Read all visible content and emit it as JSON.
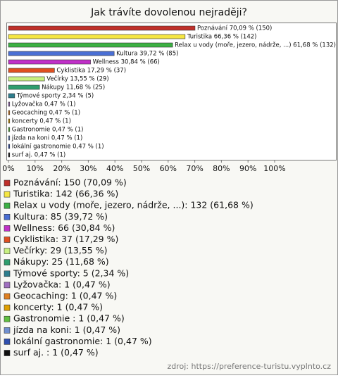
{
  "chart_data": {
    "type": "bar",
    "title": "Jak trávíte dovolenou nejraději?",
    "categories": [
      "Poznávání",
      "Turistika",
      "Relax u vody (moře, jezero, nádrže, ...)",
      "Kultura",
      "Wellness",
      "Cyklistika",
      "Večírky",
      "Nákupy",
      "Týmové sporty",
      "Lyžovačka",
      "Geocaching",
      "koncerty",
      "Gastronomie ",
      "jízda na koni",
      "lokální gastronomie",
      "surf aj. "
    ],
    "values": [
      70.09,
      66.36,
      61.68,
      39.72,
      30.84,
      17.29,
      13.55,
      11.68,
      2.34,
      0.47,
      0.47,
      0.47,
      0.47,
      0.47,
      0.47,
      0.47
    ],
    "value_labels": [
      "Poznávání 70,09 % (150)",
      "Turistika 66,36 % (142)",
      "Relax u vody (moře, jezero, nádrže, ...) 61,68 % (132)",
      "Kultura 39,72 % (85)",
      "Wellness 30,84 % (66)",
      "Cyklistika 17,29 % (37)",
      "Večírky 13,55 % (29)",
      "Nákupy 11,68 % (25)",
      "Týmové sporty 2,34 % (5)",
      "Lyžovačka 0,47 % (1)",
      "Geocaching 0,47 % (1)",
      "koncerty 0,47 % (1)",
      "Gastronomie  0,47 % (1)",
      "jízda na koni 0,47 % (1)",
      "lokální gastronomie 0,47 % (1)",
      "surf aj.  0,47 % (1)"
    ],
    "legend_labels": [
      "Poznávání: 150 (70,09 %)",
      "Turistika: 142 (66,36 %)",
      "Relax u vody (moře, jezero, nádrže, ...): 132 (61,68 %)",
      "Kultura: 85 (39,72 %)",
      "Wellness: 66 (30,84 %)",
      "Cyklistika: 37 (17,29 %)",
      "Večírky: 29 (13,55 %)",
      "Nákupy: 25 (11,68 %)",
      "Týmové sporty: 5 (2,34 %)",
      "Lyžovačka: 1 (0,47 %)",
      "Geocaching: 1 (0,47 %)",
      "koncerty: 1 (0,47 %)",
      "Gastronomie : 1 (0,47 %)",
      "jízda na koni: 1 (0,47 %)",
      "lokální gastronomie: 1 (0,47 %)",
      "surf aj. : 1 (0,47 %)"
    ],
    "colors": [
      "#c0302a",
      "#f5e642",
      "#3cb043",
      "#4a6fd4",
      "#c030c8",
      "#e05020",
      "#c8f080",
      "#2e9e6e",
      "#2e7e8e",
      "#a070c0",
      "#e08020",
      "#e0a000",
      "#60c040",
      "#7090d0",
      "#3050b0",
      "#111111"
    ],
    "xlim": [
      0,
      100
    ],
    "xticks": [
      {
        "value": 0,
        "label": "0%"
      },
      {
        "value": 10,
        "label": "10%"
      },
      {
        "value": 20,
        "label": "20%"
      },
      {
        "value": 30,
        "label": "30%"
      },
      {
        "value": 40,
        "label": "40%"
      },
      {
        "value": 50,
        "label": "50%"
      },
      {
        "value": 60,
        "label": "60%"
      },
      {
        "value": 70,
        "label": "70%"
      },
      {
        "value": 80,
        "label": "80%"
      },
      {
        "value": 90,
        "label": "90%"
      },
      {
        "value": 100,
        "label": "100%"
      }
    ],
    "source": "zdroj: https://preference-turistu.vyplnto.cz"
  }
}
